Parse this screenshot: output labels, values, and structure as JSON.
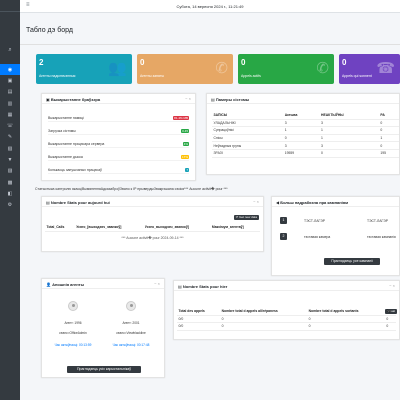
{
  "topbar": {
    "menu_icon": "≡",
    "date": "Субота, 14 вересня 2024 г., 11:21:49"
  },
  "page_title": "Табло дэ борд",
  "stats": [
    {
      "value": "2",
      "label": "Агенты падключэнныя",
      "color": "#17a2b8",
      "icon": "users-icon"
    },
    {
      "value": "0",
      "label": "Агенты заняты",
      "color": "#e6a765",
      "icon": "phone-icon"
    },
    {
      "value": "0",
      "label": "Appels actifs",
      "color": "#28a745",
      "icon": "phone-volume-icon"
    },
    {
      "value": "0",
      "label": "Appels qui sonnent",
      "color": "#6f42c1",
      "icon": "bell-icon"
    }
  ],
  "browsers_card": {
    "title": "Выкарыстанне браўзэра",
    "rows": [
      {
        "label": "Выкарыстанне памяці",
        "badge": "81.4% MB",
        "color": "#dc3545"
      },
      {
        "label": "Загрузка сістэмы",
        "badge": "0.45",
        "color": "#28a745"
      },
      {
        "label": "Выкарыстанне працэсара сервера",
        "badge": "4%",
        "color": "#28a745"
      },
      {
        "label": "Выкарыстанне дыска",
        "badge": "17%",
        "color": "#ffc107"
      },
      {
        "label": "Колькасць запушчаных працэсаў",
        "badge": "7",
        "color": "#17a2b8"
      }
    ]
  },
  "system_card": {
    "title": "Памеры сістэмы",
    "headers": [
      "ЗАПІСЫ",
      "Актыва",
      "НЕАКТЫЎНЫ",
      "РА"
    ],
    "rows": [
      [
        "УЛАДАЛЬНІКІ",
        "3",
        "3",
        "0"
      ],
      [
        "Супрацоўнікі",
        "1",
        "1",
        "0"
      ],
      [
        "Спісы",
        "0",
        "1",
        "1"
      ],
      [
        "Неўхадныя групы",
        "3",
        "3",
        "0"
      ],
      [
        "ЗРАЗІ",
        "19559",
        "0",
        "195"
      ]
    ]
  },
  "info_line": "Статыстыка кантролю якасціВымяненняАдказаброўЗвано к IP прывердыЗвакрэшана сэкіся*** Aucune activit� pour ***",
  "stats_today": {
    "title": "Nombre Stats pour aujourd hui",
    "button": "Get new data",
    "headers": [
      "Total_Calls",
      "Усяго_[выходзяч_званкоў]",
      "Усяго_выходзяч_званкоў]",
      "Максімум_агентаў]"
    ],
    "empty": "*** Aucune activit� pour 2024-09-14 ***"
  },
  "campaign_card": {
    "title": "Больш падрабязна пра кампаніям",
    "rows": [
      {
        "btn": "1",
        "col1": "ТЭСТ-ЛАГЭР",
        "col2": "ТЭСТ-ЛАГЭР"
      },
      {
        "btn": "2",
        "col1": "тэставая камера",
        "col2": "тэставая кампанія"
      }
    ],
    "button": "Праглядзець усе кампаніі"
  },
  "agents_card": {
    "title": "Апошнія агенты",
    "agents": [
      {
        "name": "Агент: 1996",
        "sub": "сеанс=OfficeAdmin",
        "link": "Час актыўнасці: 00:13:59"
      },
      {
        "name": "Агент: 2001",
        "sub": "сеанс=Viewblackline",
        "link": "Час актыўнасці: 00:17:48"
      }
    ],
    "button": "Праглядзець усіх карыстальнікаў"
  },
  "stats_yesterday": {
    "title": "Nombre Stats pour hier",
    "button": "Actual",
    "headers": [
      "Total des appels",
      "Nombre total d appels all/répaness",
      "Nombre total d appels sortants",
      "Ap"
    ],
    "rows": [
      [
        "0/0",
        "0",
        "0",
        "0"
      ],
      [
        "0/0",
        "0",
        "0",
        "0"
      ]
    ]
  }
}
